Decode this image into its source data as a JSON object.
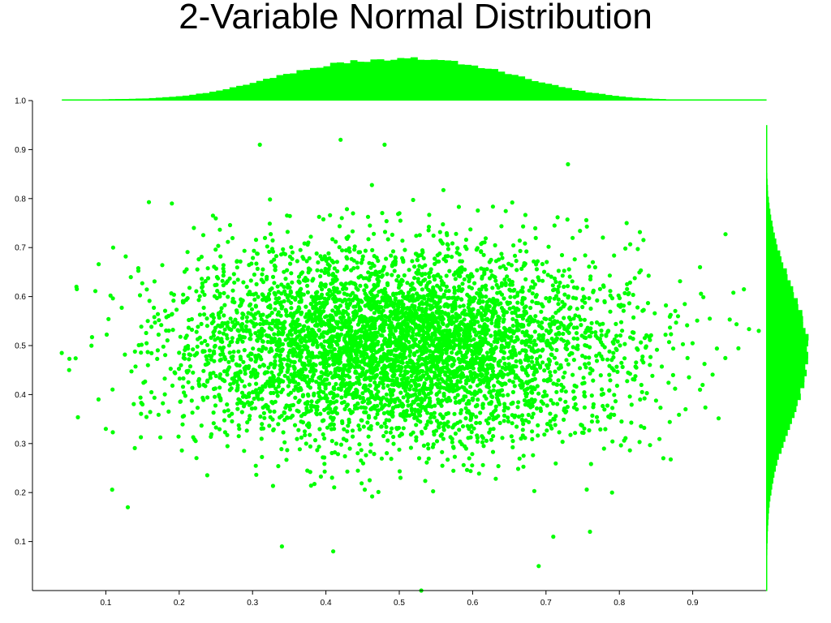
{
  "chart_data": {
    "type": "scatter",
    "title": "2-Variable Normal Distribution",
    "xlabel": "",
    "ylabel": "",
    "xlim": [
      0.0,
      1.0
    ],
    "ylim": [
      0.0,
      1.0
    ],
    "x_ticks": [
      "0.1",
      "0.2",
      "0.3",
      "0.4",
      "0.5",
      "0.6",
      "0.7",
      "0.8",
      "0.9"
    ],
    "y_ticks": [
      "0.1",
      "0.2",
      "0.3",
      "0.4",
      "0.5",
      "0.6",
      "0.7",
      "0.8",
      "0.9",
      "1.0"
    ],
    "grid": false,
    "legend": "none",
    "marginal_histograms": {
      "top": "histogram of x values",
      "right": "histogram of y values"
    },
    "distribution": {
      "x_mean": 0.5,
      "x_std": 0.15,
      "y_mean": 0.5,
      "y_std": 0.1,
      "n_points": 5000
    },
    "series": [
      {
        "color": "#00ff00",
        "points": [
          [
            0.53,
            0.0
          ],
          [
            0.05,
            0.45
          ],
          [
            0.09,
            0.39
          ],
          [
            0.1,
            0.33
          ],
          [
            0.13,
            0.17
          ],
          [
            0.69,
            0.05
          ],
          [
            0.86,
            0.27
          ],
          [
            0.91,
            0.41
          ],
          [
            0.91,
            0.66
          ],
          [
            0.88,
            0.56
          ],
          [
            0.81,
            0.75
          ],
          [
            0.73,
            0.87
          ],
          [
            0.42,
            0.92
          ],
          [
            0.48,
            0.91
          ],
          [
            0.31,
            0.91
          ],
          [
            0.11,
            0.7
          ],
          [
            0.06,
            0.62
          ],
          [
            0.99,
            0.53
          ],
          [
            0.34,
            0.09
          ],
          [
            0.41,
            0.08
          ],
          [
            0.76,
            0.12
          ],
          [
            0.71,
            0.11
          ],
          [
            0.79,
            0.2
          ],
          [
            0.15,
            0.38
          ],
          [
            0.22,
            0.74
          ],
          [
            0.19,
            0.79
          ]
        ]
      }
    ],
    "histogram_x": {
      "bin_edges_range": [
        0.04,
        1.0
      ],
      "counts_relative": [
        0.02,
        0.02,
        0.03,
        0.04,
        0.05,
        0.08,
        0.12,
        0.18,
        0.27,
        0.38,
        0.5,
        0.63,
        0.74,
        0.84,
        0.91,
        0.95,
        0.97,
        1.0,
        0.98,
        0.93,
        0.86,
        0.76,
        0.64,
        0.52,
        0.4,
        0.29,
        0.2,
        0.13,
        0.08,
        0.05,
        0.03,
        0.02,
        0.01,
        0.01,
        0.01
      ]
    },
    "histogram_y": {
      "bin_edges_range": [
        0.0,
        0.95
      ],
      "counts_relative": [
        0.01,
        0.02,
        0.03,
        0.04,
        0.06,
        0.1,
        0.17,
        0.27,
        0.4,
        0.55,
        0.7,
        0.84,
        0.95,
        1.0,
        0.97,
        0.88,
        0.74,
        0.58,
        0.42,
        0.28,
        0.17,
        0.1,
        0.05,
        0.03,
        0.02,
        0.01
      ]
    }
  }
}
